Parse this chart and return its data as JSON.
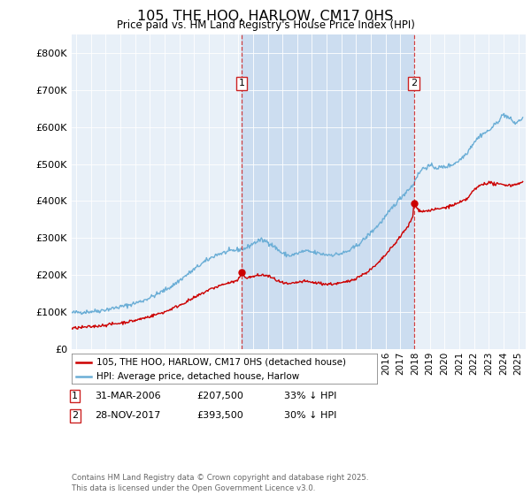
{
  "title": "105, THE HOO, HARLOW, CM17 0HS",
  "subtitle": "Price paid vs. HM Land Registry's House Price Index (HPI)",
  "plot_bg_color": "#e8f0f8",
  "shade_color": "#ccddf0",
  "hpi_color": "#6baed6",
  "price_color": "#cc0000",
  "ylim": [
    0,
    850000
  ],
  "yticks": [
    0,
    100000,
    200000,
    300000,
    400000,
    500000,
    600000,
    700000,
    800000
  ],
  "xlim_start": 1994.7,
  "xlim_end": 2025.5,
  "transaction1_date": 2006.24,
  "transaction1_price": 207500,
  "transaction2_date": 2017.91,
  "transaction2_price": 393500,
  "legend_label_red": "105, THE HOO, HARLOW, CM17 0HS (detached house)",
  "legend_label_blue": "HPI: Average price, detached house, Harlow",
  "footer": "Contains HM Land Registry data © Crown copyright and database right 2025.\nThis data is licensed under the Open Government Licence v3.0.",
  "xtick_years": [
    1995,
    1996,
    1997,
    1998,
    1999,
    2000,
    2001,
    2002,
    2003,
    2004,
    2005,
    2006,
    2007,
    2008,
    2009,
    2010,
    2011,
    2012,
    2013,
    2014,
    2015,
    2016,
    2017,
    2018,
    2019,
    2020,
    2021,
    2022,
    2023,
    2024,
    2025
  ],
  "hpi_anchors": [
    [
      1994.7,
      98000
    ],
    [
      1995.5,
      100000
    ],
    [
      1996.5,
      103000
    ],
    [
      1997.5,
      110000
    ],
    [
      1998.5,
      118000
    ],
    [
      1999.5,
      130000
    ],
    [
      2000.5,
      148000
    ],
    [
      2001.5,
      170000
    ],
    [
      2002.5,
      200000
    ],
    [
      2003.5,
      230000
    ],
    [
      2004.5,
      255000
    ],
    [
      2005.5,
      265000
    ],
    [
      2006.5,
      272000
    ],
    [
      2007.0,
      285000
    ],
    [
      2007.5,
      295000
    ],
    [
      2008.0,
      290000
    ],
    [
      2008.5,
      275000
    ],
    [
      2009.0,
      258000
    ],
    [
      2009.5,
      252000
    ],
    [
      2010.0,
      258000
    ],
    [
      2010.5,
      265000
    ],
    [
      2011.0,
      262000
    ],
    [
      2011.5,
      258000
    ],
    [
      2012.0,
      255000
    ],
    [
      2012.5,
      255000
    ],
    [
      2013.0,
      258000
    ],
    [
      2013.5,
      265000
    ],
    [
      2014.0,
      278000
    ],
    [
      2014.5,
      295000
    ],
    [
      2015.0,
      315000
    ],
    [
      2015.5,
      335000
    ],
    [
      2016.0,
      358000
    ],
    [
      2016.5,
      385000
    ],
    [
      2017.0,
      408000
    ],
    [
      2017.5,
      430000
    ],
    [
      2017.91,
      445000
    ],
    [
      2018.0,
      460000
    ],
    [
      2018.5,
      488000
    ],
    [
      2019.0,
      495000
    ],
    [
      2019.5,
      490000
    ],
    [
      2020.0,
      492000
    ],
    [
      2020.5,
      498000
    ],
    [
      2021.0,
      510000
    ],
    [
      2021.5,
      530000
    ],
    [
      2022.0,
      560000
    ],
    [
      2022.5,
      580000
    ],
    [
      2023.0,
      590000
    ],
    [
      2023.5,
      610000
    ],
    [
      2024.0,
      635000
    ],
    [
      2024.5,
      620000
    ],
    [
      2024.8,
      610000
    ],
    [
      2025.0,
      615000
    ],
    [
      2025.3,
      625000
    ]
  ],
  "price_anchors": [
    [
      1994.7,
      55000
    ],
    [
      1995.0,
      57000
    ],
    [
      1996.0,
      60000
    ],
    [
      1997.0,
      65000
    ],
    [
      1998.0,
      70000
    ],
    [
      1999.0,
      77000
    ],
    [
      2000.0,
      88000
    ],
    [
      2001.0,
      100000
    ],
    [
      2002.0,
      118000
    ],
    [
      2003.0,
      138000
    ],
    [
      2004.0,
      160000
    ],
    [
      2005.0,
      175000
    ],
    [
      2005.5,
      180000
    ],
    [
      2006.0,
      185000
    ],
    [
      2006.1,
      195000
    ],
    [
      2006.24,
      207500
    ],
    [
      2006.4,
      198000
    ],
    [
      2006.6,
      192000
    ],
    [
      2007.0,
      196000
    ],
    [
      2007.5,
      200000
    ],
    [
      2008.0,
      198000
    ],
    [
      2008.5,
      188000
    ],
    [
      2009.0,
      178000
    ],
    [
      2009.5,
      175000
    ],
    [
      2010.0,
      180000
    ],
    [
      2010.5,
      183000
    ],
    [
      2011.0,
      180000
    ],
    [
      2011.5,
      178000
    ],
    [
      2012.0,
      175000
    ],
    [
      2012.5,
      176000
    ],
    [
      2013.0,
      178000
    ],
    [
      2013.5,
      183000
    ],
    [
      2014.0,
      192000
    ],
    [
      2014.5,
      202000
    ],
    [
      2015.0,
      215000
    ],
    [
      2015.5,
      232000
    ],
    [
      2016.0,
      255000
    ],
    [
      2016.5,
      278000
    ],
    [
      2017.0,
      305000
    ],
    [
      2017.5,
      330000
    ],
    [
      2017.85,
      358000
    ],
    [
      2017.91,
      393500
    ],
    [
      2018.0,
      385000
    ],
    [
      2018.3,
      375000
    ],
    [
      2018.6,
      372000
    ],
    [
      2019.0,
      375000
    ],
    [
      2019.5,
      378000
    ],
    [
      2020.0,
      382000
    ],
    [
      2020.5,
      388000
    ],
    [
      2021.0,
      395000
    ],
    [
      2021.5,
      405000
    ],
    [
      2022.0,
      430000
    ],
    [
      2022.5,
      445000
    ],
    [
      2023.0,
      450000
    ],
    [
      2023.5,
      445000
    ],
    [
      2024.0,
      445000
    ],
    [
      2024.5,
      442000
    ],
    [
      2025.0,
      448000
    ],
    [
      2025.3,
      450000
    ]
  ]
}
